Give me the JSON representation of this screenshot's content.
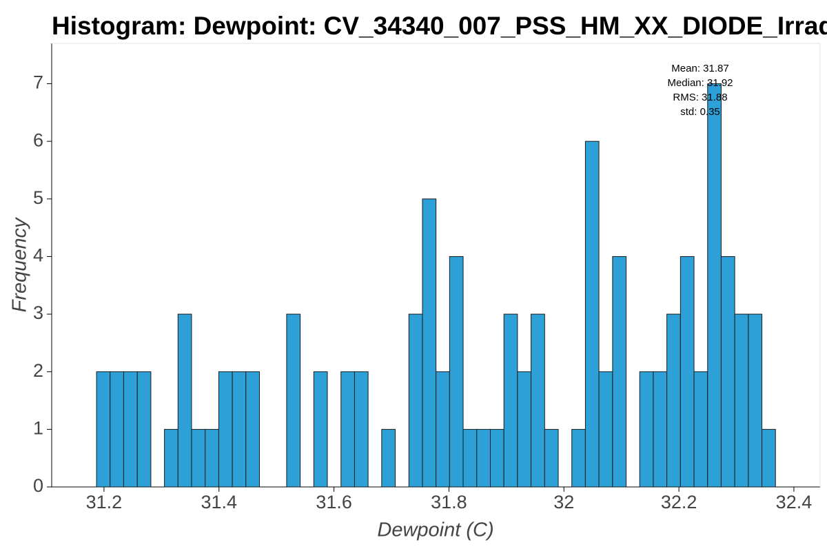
{
  "chart_data": {
    "type": "histogram",
    "title": "Histogram: Dewpoint: CV_34340_007_PSS_HM_XX_DIODE_Irrad",
    "x_label": "Dewpoint (C)",
    "y_label": "Frequency",
    "annotations": [
      "Mean: 31.87",
      "Median: 31.92",
      "RMS: 31.88",
      "std: 0.35"
    ],
    "bins": [
      31.187,
      31.2106,
      31.2342,
      31.2579,
      31.2815,
      31.3051,
      31.3287,
      31.3523,
      31.376,
      31.3996,
      31.4232,
      31.4468,
      31.4704,
      31.4941,
      31.5177,
      31.5413,
      31.5649,
      31.5885,
      31.6122,
      31.6358,
      31.6594,
      31.683,
      31.7066,
      31.7303,
      31.7539,
      31.7775,
      31.8011,
      31.8247,
      31.8484,
      31.872,
      31.8956,
      31.9192,
      31.9428,
      31.9665,
      31.9901,
      32.0137,
      32.0373,
      32.0609,
      32.0846,
      32.1082,
      32.1318,
      32.1554,
      32.179,
      32.2027,
      32.2263,
      32.2499,
      32.2735,
      32.2971,
      32.3208,
      32.3444,
      32.368
    ],
    "values": [
      2,
      2,
      2,
      2,
      0,
      1,
      3,
      1,
      1,
      2,
      2,
      2,
      0,
      0,
      3,
      0,
      2,
      0,
      2,
      2,
      0,
      1,
      0,
      3,
      5,
      2,
      4,
      1,
      1,
      1,
      3,
      2,
      3,
      1,
      0,
      1,
      6,
      2,
      4,
      0,
      2,
      2,
      3,
      4,
      2,
      7,
      4,
      3,
      3,
      1
    ],
    "color": "#2ea0d8",
    "xlim": [
      31.109,
      32.4456
    ],
    "xticks": [
      31.2,
      31.4,
      31.6,
      31.8,
      32,
      32.2,
      32.4
    ],
    "ylim": [
      0,
      7.7
    ],
    "yticks": [
      0,
      1,
      2,
      3,
      4,
      5,
      6,
      7
    ]
  }
}
